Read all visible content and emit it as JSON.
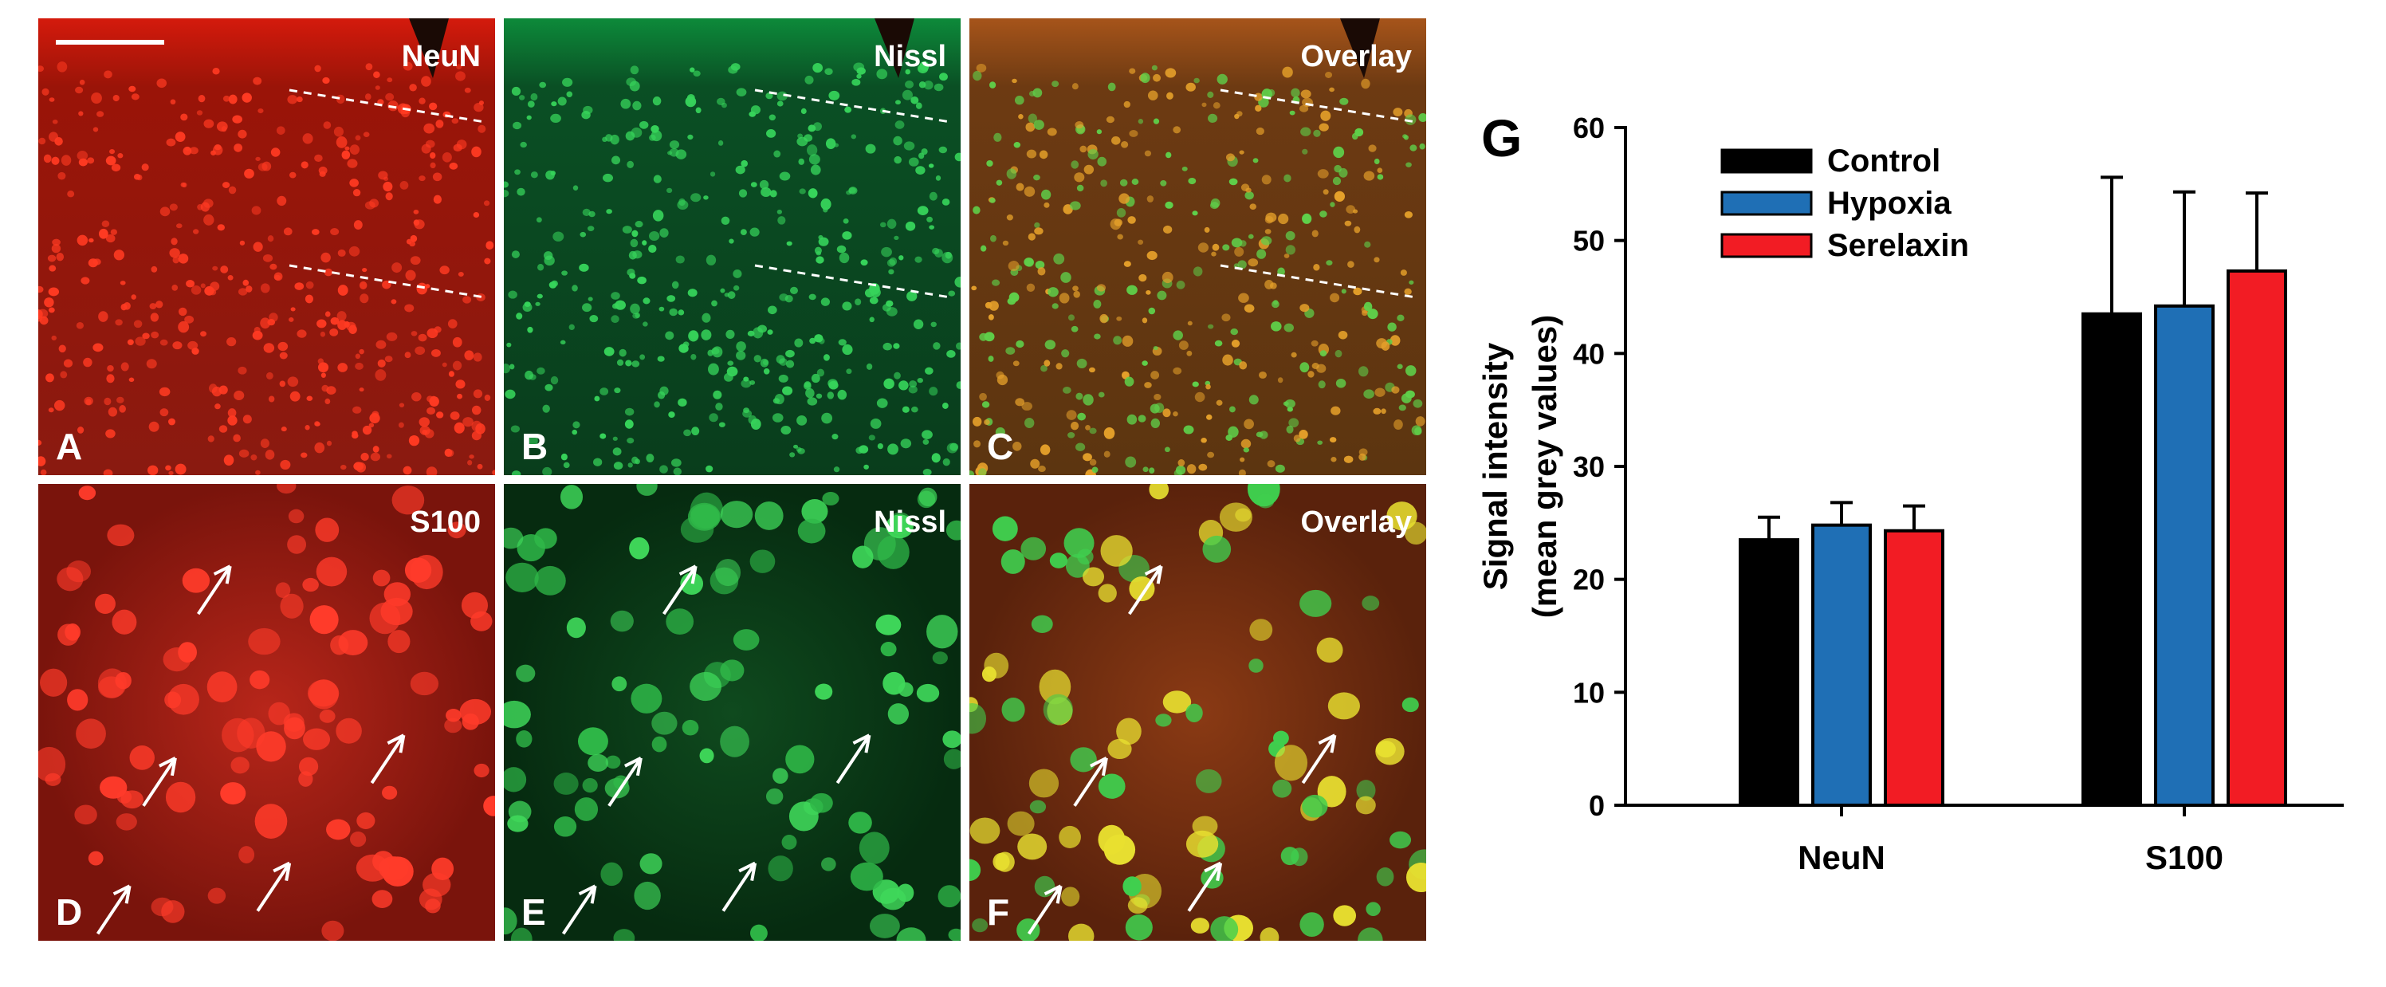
{
  "panels": [
    {
      "letter": "A",
      "label": "NeuN",
      "style": "red-low"
    },
    {
      "letter": "B",
      "label": "Nissl",
      "style": "green-low"
    },
    {
      "letter": "C",
      "label": "Overlay",
      "style": "overlay-low"
    },
    {
      "letter": "D",
      "label": "S100",
      "style": "red-high"
    },
    {
      "letter": "E",
      "label": "Nissl",
      "style": "green-high"
    },
    {
      "letter": "F",
      "label": "Overlay",
      "style": "overlay-high"
    }
  ],
  "chart_data": {
    "type": "bar",
    "panel_letter": "G",
    "ylabel": [
      "Signal intensity",
      "(mean grey values)"
    ],
    "categories": [
      "NeuN",
      "S100"
    ],
    "series": [
      {
        "name": "Control",
        "color": "#000000",
        "values": [
          23.5,
          43.5
        ],
        "errors": [
          2.0,
          12.1
        ]
      },
      {
        "name": "Hypoxia",
        "color": "#1f6fb5",
        "values": [
          24.8,
          44.2
        ],
        "errors": [
          2.0,
          10.1
        ]
      },
      {
        "name": "Serelaxin",
        "color": "#f21c24",
        "values": [
          24.3,
          47.3
        ],
        "errors": [
          2.2,
          6.9
        ]
      }
    ],
    "ylim": [
      0,
      60
    ],
    "yticks": [
      0,
      10,
      20,
      30,
      40,
      50,
      60
    ],
    "legend": "upper-left"
  }
}
